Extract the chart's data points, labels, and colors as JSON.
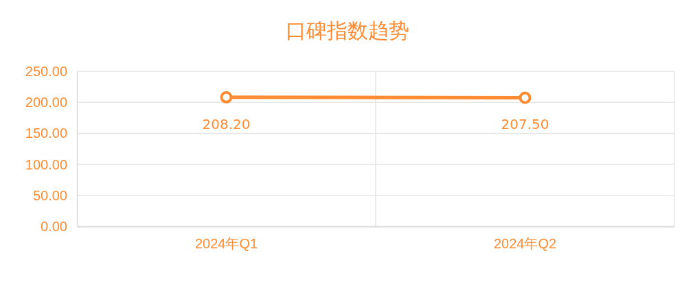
{
  "chart_data": {
    "type": "line",
    "title": "口碑指数趋势",
    "categories": [
      "2024年Q1",
      "2024年Q2"
    ],
    "series": [
      {
        "color": "#ff8c33",
        "values": [
          208.2,
          207.5
        ],
        "value_labels": [
          "208.20",
          "207.50"
        ]
      }
    ],
    "ylim": [
      0,
      250
    ],
    "yticks": [
      {
        "value": 0,
        "label": "0.00"
      },
      {
        "value": 50,
        "label": "50.00"
      },
      {
        "value": 100,
        "label": "100.00"
      },
      {
        "value": 150,
        "label": "150.00"
      },
      {
        "value": 200,
        "label": "200.00"
      },
      {
        "value": 250,
        "label": "250.00"
      }
    ],
    "grid": true,
    "marker": "circle",
    "line_style": "solid"
  }
}
